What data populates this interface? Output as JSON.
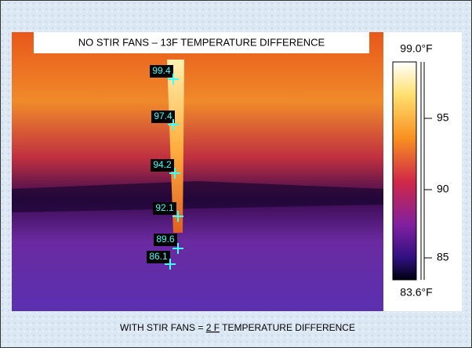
{
  "header": {
    "title": "NO STIR FANS – 13F TEMPERATURE DIFFERENCE"
  },
  "measurements": [
    "99.4",
    "97.4",
    "94.2",
    "92.1",
    "89.6",
    "86.1"
  ],
  "scale": {
    "max_label": "99.0°F",
    "min_label": "83.6°F",
    "ticks": [
      "95",
      "90",
      "85"
    ]
  },
  "footer": {
    "before": "WITH STIR FANS = ",
    "emphasis": "2 F",
    "after": " TEMPERATURE DIFFERENCE"
  }
}
